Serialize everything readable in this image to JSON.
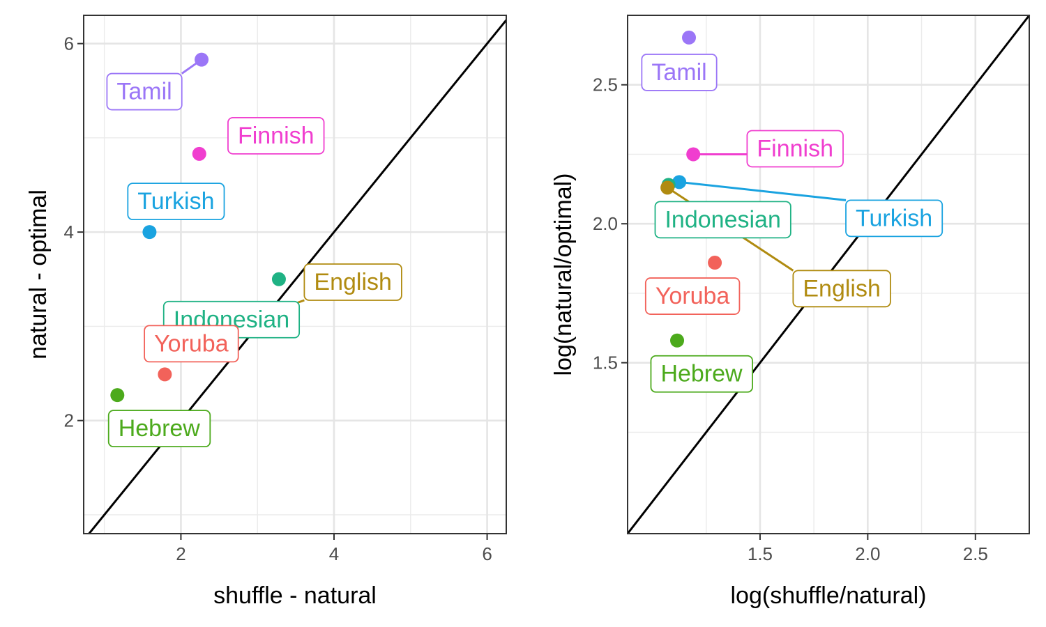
{
  "chart_data": [
    {
      "type": "scatter",
      "xlabel": "shuffle - natural",
      "ylabel": "natural - optimal",
      "xlim": [
        0.73,
        6.25
      ],
      "ylim": [
        0.8,
        6.3
      ],
      "xticks": [
        2,
        4,
        6
      ],
      "yticks": [
        2,
        4,
        6
      ],
      "xtick_labels": [
        "2",
        "4",
        "6"
      ],
      "ytick_labels": [
        "2",
        "4",
        "6"
      ],
      "grid": true,
      "reference_line": "y = x",
      "points": [
        {
          "label": "Tamil",
          "x": 2.27,
          "y": 5.83,
          "color": "#9b76f7"
        },
        {
          "label": "Finnish",
          "x": 2.24,
          "y": 4.83,
          "color": "#f03ecf"
        },
        {
          "label": "Turkish",
          "x": 1.59,
          "y": 4.0,
          "color": "#1aa3e0"
        },
        {
          "label": "Indonesian",
          "x": 3.28,
          "y": 3.5,
          "color": "#1fb284"
        },
        {
          "label": "English",
          "x": 2.79,
          "y": 3.04,
          "color": "#b08b10"
        },
        {
          "label": "Yoruba",
          "x": 1.79,
          "y": 2.49,
          "color": "#f2625a"
        },
        {
          "label": "Hebrew",
          "x": 1.17,
          "y": 2.27,
          "color": "#4caa1c"
        }
      ]
    },
    {
      "type": "scatter",
      "xlabel": "log(shuffle/natural)",
      "ylabel": "log(natural/optimal)",
      "xlim": [
        0.885,
        2.75
      ],
      "ylim": [
        0.885,
        2.75
      ],
      "xticks": [
        1.5,
        2.0,
        2.5
      ],
      "yticks": [
        1.5,
        2.0,
        2.5
      ],
      "xtick_labels": [
        "1.5",
        "2.0",
        "2.5"
      ],
      "ytick_labels": [
        "1.5",
        "2.0",
        "2.5"
      ],
      "grid": true,
      "reference_line": "y = x",
      "points": [
        {
          "label": "Tamil",
          "x": 1.17,
          "y": 2.67,
          "color": "#9b76f7"
        },
        {
          "label": "Finnish",
          "x": 1.19,
          "y": 2.25,
          "color": "#f03ecf"
        },
        {
          "label": "Turkish",
          "x": 1.125,
          "y": 2.15,
          "color": "#1aa3e0"
        },
        {
          "label": "Indonesian",
          "x": 1.075,
          "y": 2.14,
          "color": "#1fb284"
        },
        {
          "label": "English",
          "x": 1.07,
          "y": 2.13,
          "color": "#b08b10"
        },
        {
          "label": "Yoruba",
          "x": 1.29,
          "y": 1.86,
          "color": "#f2625a"
        },
        {
          "label": "Hebrew",
          "x": 1.115,
          "y": 1.58,
          "color": "#4caa1c"
        }
      ]
    }
  ]
}
